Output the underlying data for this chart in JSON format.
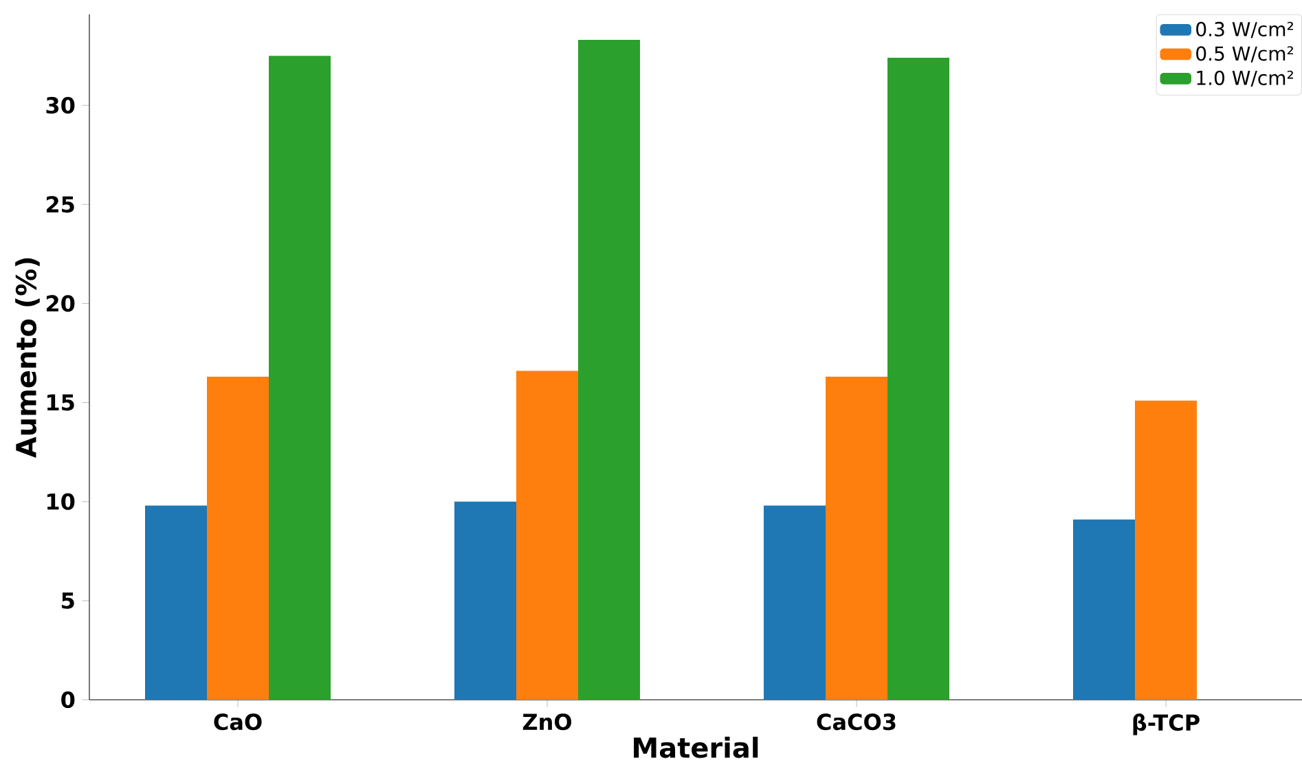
{
  "chart_data": {
    "type": "bar",
    "xlabel": "Material",
    "ylabel": "Aumento (%)",
    "categories": [
      "CaO",
      "ZnO",
      "CaCO3",
      "β-TCP"
    ],
    "series": [
      {
        "name": "0.3 W/cm²",
        "color": "#1f77b4",
        "values": [
          9.8,
          10.0,
          9.8,
          9.1
        ]
      },
      {
        "name": "0.5 W/cm²",
        "color": "#ff7f0e",
        "values": [
          16.3,
          16.6,
          16.3,
          15.1
        ]
      },
      {
        "name": "1.0 W/cm²",
        "color": "#2ca02c",
        "values": [
          32.5,
          33.3,
          32.4,
          null
        ]
      }
    ],
    "ylim": [
      0,
      34.6
    ],
    "yticks": [
      0,
      5,
      10,
      15,
      20,
      25,
      30
    ],
    "legend": "top right"
  }
}
